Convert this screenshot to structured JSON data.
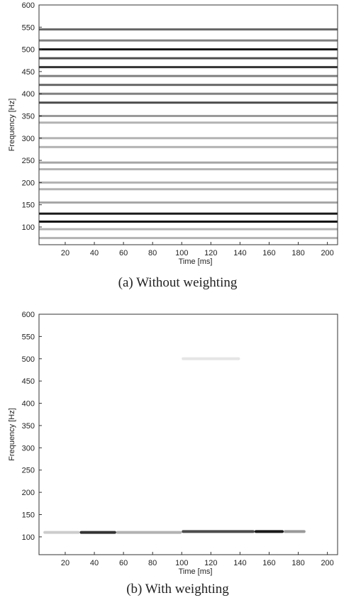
{
  "chart_data": [
    {
      "type": "spectrogram",
      "caption": "(a) Without weighting",
      "xlabel": "Time [ms]",
      "ylabel": "Frequency [Hz]",
      "xlim": [
        2,
        207
      ],
      "ylim": [
        60,
        600
      ],
      "xticks": [
        20,
        40,
        60,
        80,
        100,
        120,
        140,
        160,
        180,
        200
      ],
      "yticks": [
        100,
        150,
        200,
        250,
        300,
        350,
        400,
        450,
        500,
        550,
        600
      ],
      "frequencies": [
        545,
        520,
        500,
        480,
        460,
        440,
        420,
        400,
        380,
        350,
        335,
        300,
        280,
        245,
        230,
        200,
        185,
        155,
        130,
        112,
        95,
        75
      ],
      "values": [
        0.6,
        0.5,
        0.9,
        0.7,
        0.8,
        0.5,
        0.6,
        0.5,
        0.7,
        0.4,
        0.3,
        0.3,
        0.3,
        0.35,
        0.3,
        0.3,
        0.3,
        0.35,
        0.9,
        0.95,
        0.3,
        0.3
      ],
      "color": "#000000"
    },
    {
      "type": "segments",
      "caption": "(b) With weighting",
      "xlabel": "Time [ms]",
      "ylabel": "Frequency [Hz]",
      "xlim": [
        2,
        207
      ],
      "ylim": [
        60,
        600
      ],
      "xticks": [
        20,
        40,
        60,
        80,
        100,
        120,
        140,
        160,
        180,
        200
      ],
      "yticks": [
        100,
        150,
        200,
        250,
        300,
        350,
        400,
        450,
        500,
        550,
        600
      ],
      "segments": [
        {
          "start": 5,
          "end": 30,
          "frequency": 110,
          "intensity": 0.2
        },
        {
          "start": 30,
          "end": 55,
          "frequency": 110,
          "intensity": 0.8
        },
        {
          "start": 55,
          "end": 100,
          "frequency": 110,
          "intensity": 0.3
        },
        {
          "start": 100,
          "end": 150,
          "frequency": 112,
          "intensity": 0.7
        },
        {
          "start": 150,
          "end": 170,
          "frequency": 112,
          "intensity": 0.9
        },
        {
          "start": 170,
          "end": 185,
          "frequency": 112,
          "intensity": 0.4
        },
        {
          "start": 100,
          "end": 140,
          "frequency": 500,
          "intensity": 0.1
        }
      ],
      "color": "#000000"
    }
  ]
}
